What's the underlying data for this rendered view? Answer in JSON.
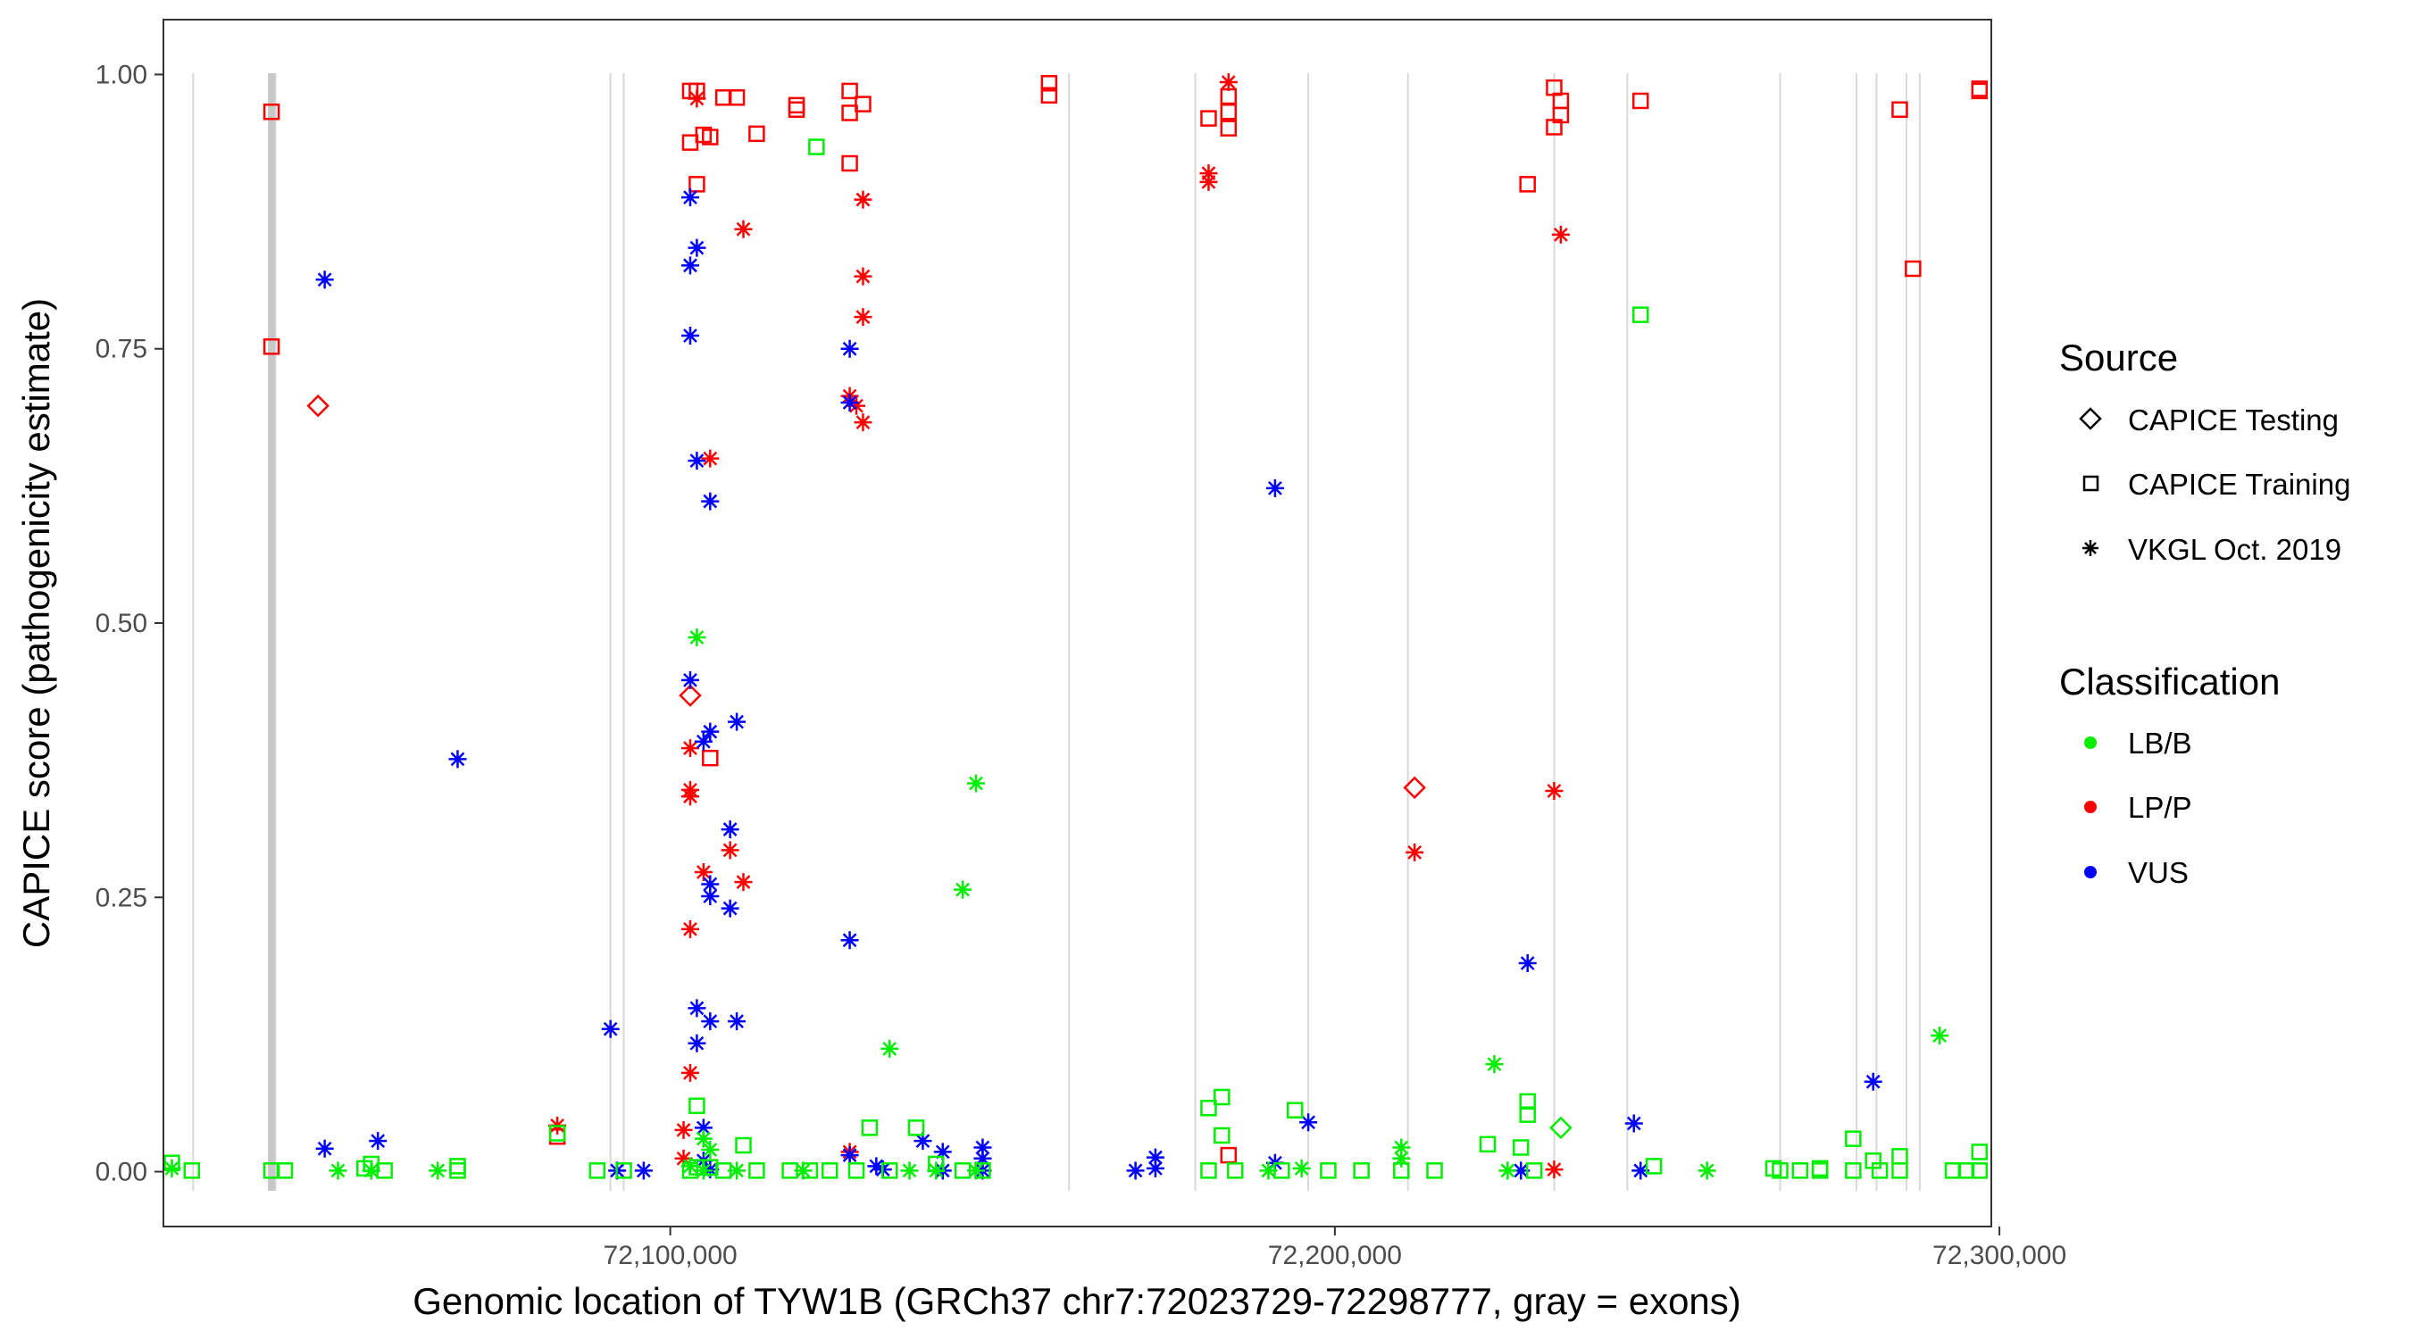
{
  "chart_data": {
    "type": "scatter",
    "title": "",
    "xlabel": "Genomic location of TYW1B (GRCh37 chr7:72023729-72298777, gray = exons)",
    "ylabel": "CAPICE score (pathogenicity estimate)",
    "xlim": [
      72023729,
      72298777
    ],
    "ylim": [
      -0.05,
      1.05
    ],
    "x_ticks": [
      72100000,
      72200000,
      72300000
    ],
    "x_tick_labels": [
      "72,100,000",
      "72,200,000",
      "72,300,000"
    ],
    "y_ticks": [
      0.0,
      0.25,
      0.5,
      0.75,
      1.0
    ],
    "y_tick_labels": [
      "0.00",
      "0.25",
      "0.50",
      "0.75",
      "1.00"
    ],
    "exons": [
      72028200,
      72040000,
      72040300,
      72040600,
      72091000,
      72093000,
      72160000,
      72179000,
      72196000,
      72211000,
      72233000,
      72244000,
      72267000,
      72278500,
      72281500,
      72286000,
      72288000
    ],
    "legend": {
      "source_title": "Source",
      "sources": [
        {
          "key": "testing",
          "label": "CAPICE Testing"
        },
        {
          "key": "training",
          "label": "CAPICE Training"
        },
        {
          "key": "vkgl",
          "label": "VKGL Oct. 2019"
        }
      ],
      "class_title": "Classification",
      "classes": [
        {
          "key": "lbb",
          "label": "LB/B",
          "color": "#00ee00"
        },
        {
          "key": "lpp",
          "label": "LP/P",
          "color": "#ff0000"
        },
        {
          "key": "vus",
          "label": "VUS",
          "color": "#0000ff"
        }
      ]
    },
    "series": [
      {
        "name": "LP/P CAPICE Training",
        "class": "lpp",
        "source": "training",
        "points": [
          [
            72040000,
            0.966
          ],
          [
            72040000,
            0.752
          ],
          [
            72083000,
            0.032
          ],
          [
            72103000,
            0.985
          ],
          [
            72104000,
            0.985
          ],
          [
            72103000,
            0.938
          ],
          [
            72105000,
            0.945
          ],
          [
            72106000,
            0.943
          ],
          [
            72104000,
            0.9
          ],
          [
            72108000,
            0.979
          ],
          [
            72110000,
            0.979
          ],
          [
            72113000,
            0.946
          ],
          [
            72119000,
            0.972
          ],
          [
            72119000,
            0.968
          ],
          [
            72127000,
            0.985
          ],
          [
            72129000,
            0.973
          ],
          [
            72127000,
            0.965
          ],
          [
            72127000,
            0.919
          ],
          [
            72157000,
            0.992
          ],
          [
            72157000,
            0.981
          ],
          [
            72181000,
            0.96
          ],
          [
            72184000,
            0.98
          ],
          [
            72184000,
            0.966
          ],
          [
            72184000,
            0.951
          ],
          [
            72184000,
            0.015
          ],
          [
            72229000,
            0.9
          ],
          [
            72233000,
            0.988
          ],
          [
            72234000,
            0.976
          ],
          [
            72234000,
            0.963
          ],
          [
            72233000,
            0.952
          ],
          [
            72246000,
            0.976
          ],
          [
            72285000,
            0.968
          ],
          [
            72287000,
            0.823
          ],
          [
            72297000,
            0.987
          ],
          [
            72297000,
            0.985
          ],
          [
            72106000,
            0.377
          ]
        ]
      },
      {
        "name": "LP/P CAPICE Testing",
        "class": "lpp",
        "source": "testing",
        "points": [
          [
            72047000,
            0.698
          ],
          [
            72103000,
            0.434
          ],
          [
            72212000,
            0.35
          ]
        ]
      },
      {
        "name": "LP/P VKGL",
        "class": "lpp",
        "source": "vkgl",
        "points": [
          [
            72104000,
            0.978
          ],
          [
            72111000,
            0.859
          ],
          [
            72129000,
            0.886
          ],
          [
            72129000,
            0.816
          ],
          [
            72129000,
            0.779
          ],
          [
            72127000,
            0.707
          ],
          [
            72128000,
            0.698
          ],
          [
            72129000,
            0.683
          ],
          [
            72106000,
            0.65
          ],
          [
            72103000,
            0.386
          ],
          [
            72103000,
            0.348
          ],
          [
            72103000,
            0.342
          ],
          [
            72105000,
            0.273
          ],
          [
            72109000,
            0.293
          ],
          [
            72111000,
            0.264
          ],
          [
            72103000,
            0.221
          ],
          [
            72103000,
            0.09
          ],
          [
            72083000,
            0.042
          ],
          [
            72102000,
            0.038
          ],
          [
            72102000,
            0.012
          ],
          [
            72127000,
            0.018
          ],
          [
            72181000,
            0.91
          ],
          [
            72181000,
            0.902
          ],
          [
            72184000,
            0.993
          ],
          [
            72212000,
            0.291
          ],
          [
            72234000,
            0.854
          ],
          [
            72233000,
            0.347
          ],
          [
            72233000,
            0.002
          ]
        ]
      },
      {
        "name": "VUS VKGL",
        "class": "vus",
        "source": "vkgl",
        "points": [
          [
            72048000,
            0.813
          ],
          [
            72048000,
            0.021
          ],
          [
            72056000,
            0.028
          ],
          [
            72068000,
            0.376
          ],
          [
            72091000,
            0.13
          ],
          [
            72092000,
            0.001
          ],
          [
            72096000,
            0.001
          ],
          [
            72103000,
            0.888
          ],
          [
            72104000,
            0.842
          ],
          [
            72103000,
            0.826
          ],
          [
            72103000,
            0.762
          ],
          [
            72104000,
            0.648
          ],
          [
            72106000,
            0.611
          ],
          [
            72103000,
            0.448
          ],
          [
            72106000,
            0.401
          ],
          [
            72105000,
            0.392
          ],
          [
            72110000,
            0.41
          ],
          [
            72109000,
            0.312
          ],
          [
            72106000,
            0.262
          ],
          [
            72106000,
            0.251
          ],
          [
            72109000,
            0.24
          ],
          [
            72104000,
            0.149
          ],
          [
            72106000,
            0.137
          ],
          [
            72110000,
            0.137
          ],
          [
            72104000,
            0.117
          ],
          [
            72105000,
            0.04
          ],
          [
            72105000,
            0.01
          ],
          [
            72106000,
            0.002
          ],
          [
            72127000,
            0.75
          ],
          [
            72127000,
            0.701
          ],
          [
            72127000,
            0.211
          ],
          [
            72127000,
            0.015
          ],
          [
            72131000,
            0.005
          ],
          [
            72132000,
            0.002
          ],
          [
            72138000,
            0.028
          ],
          [
            72141000,
            0.018
          ],
          [
            72141000,
            0.001
          ],
          [
            72147000,
            0.022
          ],
          [
            72147000,
            0.012
          ],
          [
            72147000,
            0.001
          ],
          [
            72170000,
            0.001
          ],
          [
            72173000,
            0.013
          ],
          [
            72173000,
            0.003
          ],
          [
            72191000,
            0.623
          ],
          [
            72191000,
            0.008
          ],
          [
            72196000,
            0.045
          ],
          [
            72229000,
            0.19
          ],
          [
            72228000,
            0.001
          ],
          [
            72245000,
            0.044
          ],
          [
            72246000,
            0.001
          ],
          [
            72281000,
            0.082
          ]
        ]
      },
      {
        "name": "LB/B VKGL",
        "class": "lbb",
        "source": "vkgl",
        "points": [
          [
            72025000,
            0.003
          ],
          [
            72050000,
            0.001
          ],
          [
            72055000,
            0.001
          ],
          [
            72065000,
            0.001
          ],
          [
            72104000,
            0.487
          ],
          [
            72105000,
            0.03
          ],
          [
            72106000,
            0.02
          ],
          [
            72103000,
            0.005
          ],
          [
            72105000,
            0.001
          ],
          [
            72110000,
            0.001
          ],
          [
            72120000,
            0.001
          ],
          [
            72133000,
            0.112
          ],
          [
            72136000,
            0.001
          ],
          [
            72140000,
            0.001
          ],
          [
            72144000,
            0.257
          ],
          [
            72146000,
            0.354
          ],
          [
            72146000,
            0.001
          ],
          [
            72190000,
            0.001
          ],
          [
            72195000,
            0.003
          ],
          [
            72210000,
            0.022
          ],
          [
            72210000,
            0.012
          ],
          [
            72224000,
            0.098
          ],
          [
            72226000,
            0.001
          ],
          [
            72256000,
            0.001
          ],
          [
            72291000,
            0.124
          ]
        ]
      },
      {
        "name": "LB/B CAPICE Training",
        "class": "lbb",
        "source": "training",
        "points": [
          [
            72025000,
            0.008
          ],
          [
            72028000,
            0.001
          ],
          [
            72040000,
            0.001
          ],
          [
            72042000,
            0.001
          ],
          [
            72054000,
            0.003
          ],
          [
            72055000,
            0.007
          ],
          [
            72057000,
            0.001
          ],
          [
            72068000,
            0.005
          ],
          [
            72068000,
            0.001
          ],
          [
            72083000,
            0.035
          ],
          [
            72089000,
            0.001
          ],
          [
            72093000,
            0.001
          ],
          [
            72104000,
            0.06
          ],
          [
            72104000,
            0.004
          ],
          [
            72106000,
            0.004
          ],
          [
            72103000,
            0.001
          ],
          [
            72108000,
            0.001
          ],
          [
            72111000,
            0.024
          ],
          [
            72113000,
            0.001
          ],
          [
            72118000,
            0.001
          ],
          [
            72122000,
            0.934
          ],
          [
            72121000,
            0.001
          ],
          [
            72124000,
            0.001
          ],
          [
            72130000,
            0.04
          ],
          [
            72128000,
            0.001
          ],
          [
            72133000,
            0.001
          ],
          [
            72137000,
            0.04
          ],
          [
            72140000,
            0.007
          ],
          [
            72144000,
            0.001
          ],
          [
            72147000,
            0.001
          ],
          [
            72181000,
            0.058
          ],
          [
            72183000,
            0.068
          ],
          [
            72183000,
            0.033
          ],
          [
            72181000,
            0.001
          ],
          [
            72185000,
            0.001
          ],
          [
            72194000,
            0.056
          ],
          [
            72192000,
            0.001
          ],
          [
            72199000,
            0.001
          ],
          [
            72204000,
            0.001
          ],
          [
            72210000,
            0.001
          ],
          [
            72215000,
            0.001
          ],
          [
            72223000,
            0.025
          ],
          [
            72229000,
            0.064
          ],
          [
            72229000,
            0.052
          ],
          [
            72228000,
            0.022
          ],
          [
            72230000,
            0.001
          ],
          [
            72246000,
            0.781
          ],
          [
            72248000,
            0.005
          ],
          [
            72266000,
            0.003
          ],
          [
            72267000,
            0.001
          ],
          [
            72270000,
            0.001
          ],
          [
            72273000,
            0.003
          ],
          [
            72273000,
            0.001
          ],
          [
            72278000,
            0.03
          ],
          [
            72278000,
            0.001
          ],
          [
            72281000,
            0.01
          ],
          [
            72282000,
            0.001
          ],
          [
            72285000,
            0.014
          ],
          [
            72285000,
            0.001
          ],
          [
            72293000,
            0.001
          ],
          [
            72295000,
            0.001
          ],
          [
            72297000,
            0.018
          ],
          [
            72297000,
            0.001
          ]
        ]
      },
      {
        "name": "LB/B CAPICE Testing",
        "class": "lbb",
        "source": "testing",
        "points": [
          [
            72234000,
            0.04
          ]
        ]
      }
    ]
  }
}
